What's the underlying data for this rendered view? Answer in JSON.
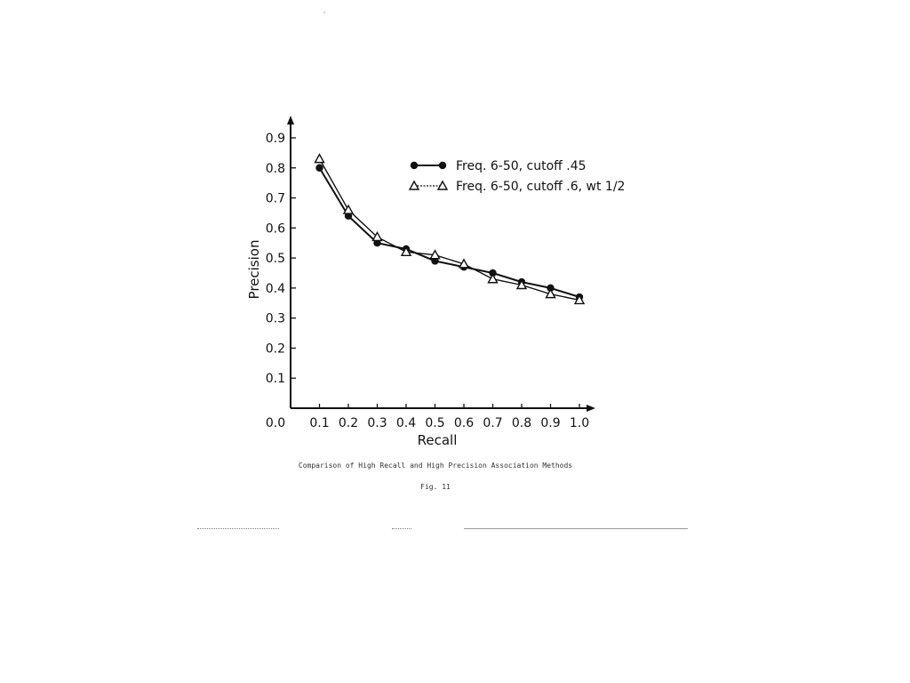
{
  "chart_data": {
    "type": "line",
    "title": "",
    "xlabel": "Recall",
    "ylabel": "Precision",
    "xlim": [
      0.0,
      1.0
    ],
    "ylim": [
      0.0,
      0.9
    ],
    "x_ticks": [
      "0.0",
      "0.1",
      "0.2",
      "0.3",
      "0.4",
      "0.5",
      "0.6",
      "0.7",
      "0.8",
      "0.9",
      "1.0"
    ],
    "y_ticks": [
      "0.1",
      "0.2",
      "0.3",
      "0.4",
      "0.5",
      "0.6",
      "0.7",
      "0.8",
      "0.9"
    ],
    "x": [
      0.1,
      0.2,
      0.3,
      0.4,
      0.5,
      0.6,
      0.7,
      0.8,
      0.9,
      1.0
    ],
    "series": [
      {
        "name": "Freq. 6-50, cutoff .45",
        "marker": "filled-circle",
        "values": [
          0.8,
          0.64,
          0.55,
          0.53,
          0.49,
          0.47,
          0.45,
          0.42,
          0.4,
          0.37
        ]
      },
      {
        "name": "Freq. 6-50, cutoff .6, wt 1/2",
        "marker": "open-triangle",
        "values": [
          0.83,
          0.66,
          0.57,
          0.52,
          0.51,
          0.48,
          0.43,
          0.41,
          0.38,
          0.36
        ]
      }
    ],
    "grid": false,
    "legend_position": "top-right"
  },
  "captions": {
    "figure_caption": "Comparison of High Recall and High Precision Association Methods",
    "figure_number": "Fig. 11"
  },
  "marks": {
    "top_tick": "'"
  }
}
